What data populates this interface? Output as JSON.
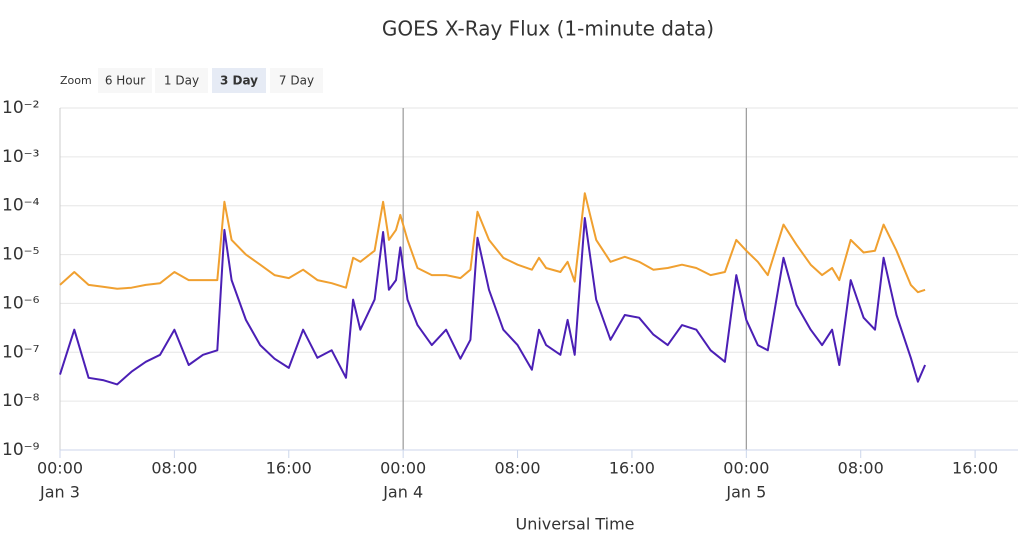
{
  "chart_data": {
    "type": "line",
    "title": "GOES X-Ray Flux (1-minute data)",
    "xlabel": "Universal Time",
    "zoom": {
      "label": "Zoom",
      "buttons": [
        "6 Hour",
        "1 Day",
        "3 Day",
        "7 Day"
      ],
      "selected": 2
    },
    "log_y": true,
    "grid": true,
    "ylim": [
      1e-09,
      0.01
    ],
    "yticks": [
      {
        "value": 1e-09,
        "label": "10⁻⁹"
      },
      {
        "value": 1e-08,
        "label": "10⁻⁸"
      },
      {
        "value": 1e-07,
        "label": "10⁻⁷"
      },
      {
        "value": 1e-06,
        "label": "10⁻⁶"
      },
      {
        "value": 1e-05,
        "label": "10⁻⁵"
      },
      {
        "value": 0.0001,
        "label": "10⁻⁴"
      },
      {
        "value": 0.001,
        "label": "10⁻³"
      },
      {
        "value": 0.01,
        "label": "10⁻²"
      }
    ],
    "xlim": [
      "Jan 3 00:00",
      "Jan 5 19:00"
    ],
    "xticks": [
      {
        "value": "Jan 3 00:00",
        "label": "00:00"
      },
      {
        "value": "Jan 3 08:00",
        "label": "08:00"
      },
      {
        "value": "Jan 3 16:00",
        "label": "16:00"
      },
      {
        "value": "Jan 4 00:00",
        "label": "00:00"
      },
      {
        "value": "Jan 4 08:00",
        "label": "08:00"
      },
      {
        "value": "Jan 4 16:00",
        "label": "16:00"
      },
      {
        "value": "Jan 5 00:00",
        "label": "00:00"
      },
      {
        "value": "Jan 5 08:00",
        "label": "08:00"
      },
      {
        "value": "Jan 5 16:00",
        "label": "16:00"
      }
    ],
    "xtick_days": [
      {
        "value": "Jan 3 00:00",
        "label": "Jan 3"
      },
      {
        "value": "Jan 4 00:00",
        "label": "Jan 4"
      },
      {
        "value": "Jan 5 00:00",
        "label": "Jan 5"
      }
    ],
    "xplotlines": [
      "Jan 4 00:00",
      "Jan 5 00:00"
    ],
    "x": [
      "Jan 3 00:00",
      "Jan 3 01:00",
      "Jan 3 02:00",
      "Jan 3 03:00",
      "Jan 3 04:00",
      "Jan 3 05:00",
      "Jan 3 06:00",
      "Jan 3 07:00",
      "Jan 3 08:00",
      "Jan 3 09:00",
      "Jan 3 10:00",
      "Jan 3 11:00",
      "Jan 3 11:30",
      "Jan 3 12:00",
      "Jan 3 13:00",
      "Jan 3 14:00",
      "Jan 3 15:00",
      "Jan 3 16:00",
      "Jan 3 17:00",
      "Jan 3 18:00",
      "Jan 3 19:00",
      "Jan 3 20:00",
      "Jan 3 20:30",
      "Jan 3 21:00",
      "Jan 3 22:00",
      "Jan 3 22:36",
      "Jan 3 23:00",
      "Jan 3 23:30",
      "Jan 3 23:48",
      "Jan 4 00:18",
      "Jan 4 01:00",
      "Jan 4 02:00",
      "Jan 4 03:00",
      "Jan 4 04:00",
      "Jan 4 04:42",
      "Jan 4 05:12",
      "Jan 4 06:00",
      "Jan 4 07:00",
      "Jan 4 08:00",
      "Jan 4 09:00",
      "Jan 4 09:30",
      "Jan 4 10:00",
      "Jan 4 11:00",
      "Jan 4 11:30",
      "Jan 4 12:00",
      "Jan 4 12:42",
      "Jan 4 13:30",
      "Jan 4 14:30",
      "Jan 4 15:30",
      "Jan 4 16:30",
      "Jan 4 17:30",
      "Jan 4 18:30",
      "Jan 4 19:30",
      "Jan 4 20:30",
      "Jan 4 21:30",
      "Jan 4 22:30",
      "Jan 4 23:18",
      "Jan 5 00:00",
      "Jan 5 00:48",
      "Jan 5 01:30",
      "Jan 5 02:36",
      "Jan 5 03:30",
      "Jan 5 04:30",
      "Jan 5 05:18",
      "Jan 5 06:00",
      "Jan 5 06:30",
      "Jan 5 07:18",
      "Jan 5 08:12",
      "Jan 5 09:00",
      "Jan 5 09:36",
      "Jan 5 10:30",
      "Jan 5 11:30",
      "Jan 5 12:00",
      "Jan 5 12:30"
    ],
    "series": [
      {
        "color": "#f0a030",
        "values": [
          2.4e-06,
          4.4e-06,
          2.4e-06,
          2.2e-06,
          2e-06,
          2.1e-06,
          2.4e-06,
          2.6e-06,
          4.4e-06,
          3e-06,
          3e-06,
          3e-06,
          0.00012,
          2e-05,
          1e-05,
          6.2e-06,
          3.8e-06,
          3.3e-06,
          4.9e-06,
          3e-06,
          2.6e-06,
          2.1e-06,
          8.6e-06,
          7.1e-06,
          1.2e-05,
          0.00012,
          2e-05,
          3.2e-05,
          6.5e-05,
          2e-05,
          5.3e-06,
          3.8e-06,
          3.8e-06,
          3.3e-06,
          4.9e-06,
          7.5e-05,
          2e-05,
          8.6e-06,
          6.2e-06,
          4.9e-06,
          8.6e-06,
          5.3e-06,
          4.4e-06,
          7.1e-06,
          2.8e-06,
          0.00018,
          2e-05,
          7.1e-06,
          9e-06,
          7.1e-06,
          4.9e-06,
          5.3e-06,
          6.2e-06,
          5.3e-06,
          3.8e-06,
          4.4e-06,
          2e-05,
          1.2e-05,
          7.1e-06,
          3.8e-06,
          4.1e-05,
          1.6e-05,
          6.2e-06,
          3.8e-06,
          5.3e-06,
          3e-06,
          2e-05,
          1.1e-05,
          1.2e-05,
          4.1e-05,
          1.2e-05,
          2.4e-06,
          1.7e-06,
          1.9e-06
        ]
      },
      {
        "color": "#4b1fb5",
        "values": [
          3.5e-08,
          2.9e-07,
          3e-08,
          2.7e-08,
          2.2e-08,
          4e-08,
          6.4e-08,
          8.9e-08,
          2.9e-07,
          5.5e-08,
          8.9e-08,
          1.1e-07,
          3.2e-05,
          3e-06,
          4.6e-07,
          1.4e-07,
          7.4e-08,
          4.8e-08,
          2.9e-07,
          7.7e-08,
          1.1e-07,
          3e-08,
          1.2e-06,
          2.9e-07,
          1.2e-06,
          2.9e-05,
          1.9e-06,
          3e-06,
          1.4e-05,
          1.2e-06,
          3.6e-07,
          1.4e-07,
          2.9e-07,
          7.4e-08,
          1.8e-07,
          2.2e-05,
          1.9e-06,
          2.9e-07,
          1.4e-07,
          4.4e-08,
          2.9e-07,
          1.4e-07,
          8.9e-08,
          4.6e-07,
          8.9e-08,
          5.6e-05,
          1.2e-06,
          1.8e-07,
          5.8e-07,
          5.1e-07,
          2.3e-07,
          1.4e-07,
          3.6e-07,
          2.9e-07,
          1.1e-07,
          6.4e-08,
          3.8e-06,
          4.6e-07,
          1.4e-07,
          1.1e-07,
          8.6e-06,
          9.4e-07,
          2.9e-07,
          1.4e-07,
          2.9e-07,
          5.5e-08,
          3e-06,
          5.1e-07,
          2.9e-07,
          8.6e-06,
          5.8e-07,
          7.7e-08,
          2.5e-08,
          5.5e-08
        ]
      }
    ]
  }
}
